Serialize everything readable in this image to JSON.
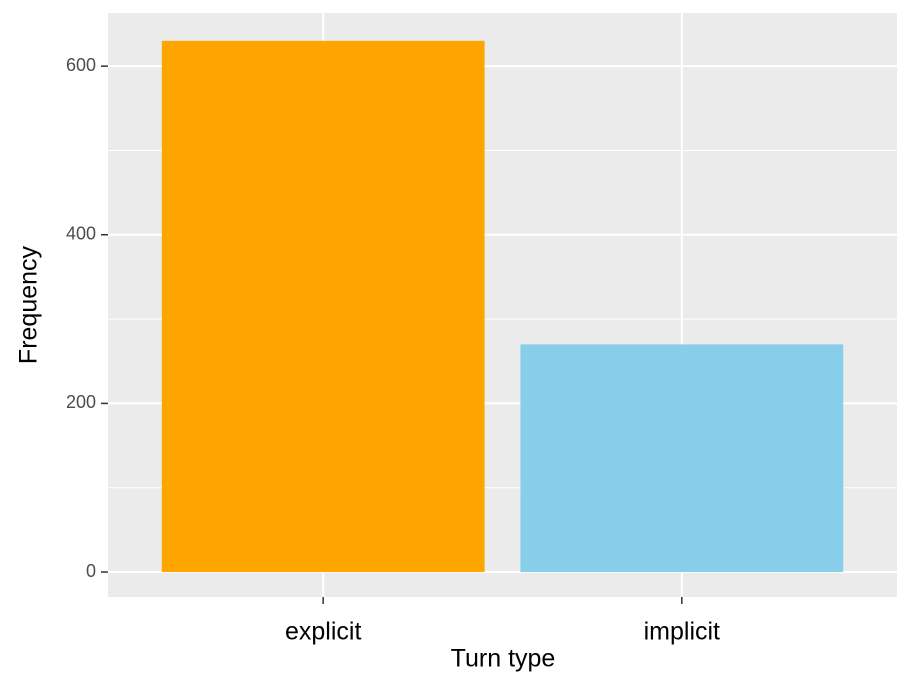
{
  "chart_data": {
    "type": "bar",
    "categories": [
      "explicit",
      "implicit"
    ],
    "values": [
      630,
      270
    ],
    "colors": [
      "#FFA500",
      "#87CEEB"
    ],
    "xlabel": "Turn type",
    "ylabel": "Frequency",
    "ylim": [
      -29.6,
      663
    ],
    "yticks": [
      0,
      200,
      400,
      600
    ],
    "grid": true
  }
}
